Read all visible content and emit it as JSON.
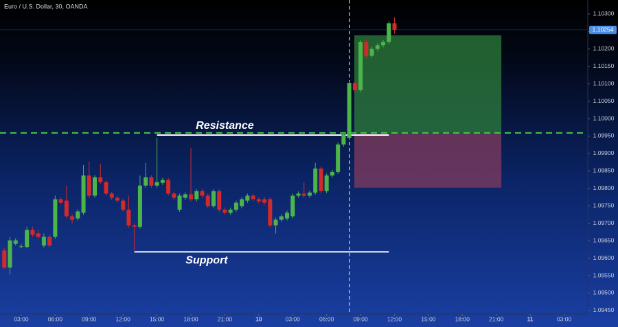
{
  "chart_data": {
    "type": "candlestick",
    "title": "Euro / U.S. Dollar, 30, OANDA",
    "up_color": "#4cb54a",
    "down_color": "#d12a2a",
    "xlim": [
      1.12,
      53.03
    ],
    "ylim": [
      1.0944,
      1.1034
    ],
    "xticks": [
      {
        "value": 3,
        "label": "03:00"
      },
      {
        "value": 6,
        "label": "06:00"
      },
      {
        "value": 9,
        "label": "09:00"
      },
      {
        "value": 12,
        "label": "12:00"
      },
      {
        "value": 15,
        "label": "15:00"
      },
      {
        "value": 18,
        "label": "18:00"
      },
      {
        "value": 21,
        "label": "21:00"
      },
      {
        "value": 24,
        "label": "10"
      },
      {
        "value": 27,
        "label": "03:00"
      },
      {
        "value": 30,
        "label": "06:00"
      },
      {
        "value": 33,
        "label": "09:00"
      },
      {
        "value": 36,
        "label": "12:00"
      },
      {
        "value": 39,
        "label": "15:00"
      },
      {
        "value": 42,
        "label": "18:00"
      },
      {
        "value": 45,
        "label": "21:00"
      },
      {
        "value": 48,
        "label": "11"
      },
      {
        "value": 51,
        "label": "03:00"
      }
    ],
    "yticks": [
      {
        "value": 1.103,
        "label": "1.10300"
      },
      {
        "value": 1.1025,
        "label": "1.10250"
      },
      {
        "value": 1.102,
        "label": "1.10200"
      },
      {
        "value": 1.1015,
        "label": "1.10150"
      },
      {
        "value": 1.101,
        "label": "1.10100"
      },
      {
        "value": 1.1005,
        "label": "1.10050"
      },
      {
        "value": 1.1,
        "label": "1.10000"
      },
      {
        "value": 1.0995,
        "label": "1.09950"
      },
      {
        "value": 1.099,
        "label": "1.09900"
      },
      {
        "value": 1.0985,
        "label": "1.09850"
      },
      {
        "value": 1.098,
        "label": "1.09800"
      },
      {
        "value": 1.0975,
        "label": "1.09750"
      },
      {
        "value": 1.097,
        "label": "1.09700"
      },
      {
        "value": 1.0965,
        "label": "1.09650"
      },
      {
        "value": 1.096,
        "label": "1.09600"
      },
      {
        "value": 1.0955,
        "label": "1.09550"
      },
      {
        "value": 1.095,
        "label": "1.09500"
      },
      {
        "value": 1.0945,
        "label": "1.09450"
      }
    ],
    "current_price": {
      "value": 1.10254,
      "label": "1.10254"
    },
    "x": [
      1.5,
      2,
      2.5,
      3,
      3.5,
      4,
      4.5,
      5,
      5.5,
      6,
      6.5,
      7,
      7.5,
      8,
      8.5,
      9,
      9.5,
      10,
      10.5,
      11,
      11.5,
      12,
      12.5,
      13,
      13.5,
      14,
      14.5,
      15,
      15.5,
      16,
      16.5,
      17,
      17.5,
      18,
      18.5,
      19,
      19.5,
      20,
      20.5,
      21,
      21.5,
      22,
      22.5,
      23,
      23.5,
      24,
      24.5,
      25,
      25.5,
      26,
      26.5,
      27,
      27.5,
      28,
      28.5,
      29,
      29.5,
      30,
      30.5,
      31,
      31.5,
      32,
      32.5,
      33,
      33.5,
      34,
      34.5,
      35,
      35.5,
      36
    ],
    "open": [
      1.09622,
      1.09573,
      1.09641,
      1.09632,
      1.09632,
      1.09681,
      1.09671,
      1.09636,
      1.09661,
      1.09661,
      1.09769,
      1.09765,
      1.0972,
      1.09714,
      1.0973,
      1.09837,
      1.09779,
      1.09832,
      1.09818,
      1.09785,
      1.09773,
      1.09765,
      1.09739,
      1.09694,
      1.0969,
      1.09808,
      1.09832,
      1.09808,
      1.09816,
      1.09824,
      1.09785,
      1.09739,
      1.09773,
      1.09783,
      1.09769,
      1.09792,
      1.09779,
      1.09749,
      1.09792,
      1.09739,
      1.0973,
      1.09739,
      1.09749,
      1.09765,
      1.09779,
      1.09769,
      1.09769,
      1.09769,
      1.09694,
      1.0971,
      1.09714,
      1.0972,
      1.09779,
      1.09785,
      1.09779,
      1.09788,
      1.09857,
      1.09792,
      1.09837,
      1.09847,
      1.09926,
      1.09945,
      1.10102,
      1.10082,
      1.1022,
      1.1018,
      1.102,
      1.1021,
      1.1022,
      1.10273
    ],
    "high": [
      1.09628,
      1.09661,
      1.09657,
      1.09641,
      1.0969,
      1.0969,
      1.09681,
      1.09671,
      1.09667,
      1.09779,
      1.09775,
      1.09808,
      1.09726,
      1.0974,
      1.09867,
      1.09877,
      1.09838,
      1.09871,
      1.09824,
      1.0979,
      1.09779,
      1.09771,
      1.09779,
      1.097,
      1.09837,
      1.09873,
      1.09838,
      1.09945,
      1.0983,
      1.0983,
      1.09791,
      1.09785,
      1.09789,
      1.09916,
      1.09798,
      1.09798,
      1.09785,
      1.09798,
      1.09798,
      1.09745,
      1.09745,
      1.09765,
      1.09775,
      1.09785,
      1.09785,
      1.09775,
      1.09775,
      1.09775,
      1.09716,
      1.09726,
      1.09736,
      1.09785,
      1.09791,
      1.09818,
      1.09794,
      1.09873,
      1.09863,
      1.09843,
      1.09853,
      1.09932,
      1.09961,
      1.10108,
      1.10108,
      1.10226,
      1.10226,
      1.10206,
      1.10216,
      1.10226,
      1.10279,
      1.1029
    ],
    "low": [
      1.09569,
      1.09553,
      1.09636,
      1.09628,
      1.09628,
      1.09661,
      1.09655,
      1.0963,
      1.09632,
      1.09655,
      1.09755,
      1.09714,
      1.097,
      1.09708,
      1.09724,
      1.09773,
      1.09773,
      1.09812,
      1.09779,
      1.09767,
      1.09759,
      1.09733,
      1.09688,
      1.09622,
      1.09684,
      1.09802,
      1.09802,
      1.09802,
      1.0981,
      1.09779,
      1.09767,
      1.09733,
      1.09767,
      1.09763,
      1.09763,
      1.09773,
      1.09743,
      1.09743,
      1.09733,
      1.09724,
      1.09724,
      1.09733,
      1.09743,
      1.09759,
      1.09763,
      1.09757,
      1.09753,
      1.09688,
      1.09671,
      1.09704,
      1.09708,
      1.09714,
      1.09773,
      1.09773,
      1.09773,
      1.09782,
      1.09786,
      1.09786,
      1.09831,
      1.09841,
      1.0992,
      1.09939,
      1.10076,
      1.10076,
      1.10174,
      1.10174,
      1.10194,
      1.10204,
      1.10214,
      1.10243
    ],
    "close": [
      1.09573,
      1.09651,
      1.09651,
      1.09634,
      1.09681,
      1.09667,
      1.09661,
      1.09661,
      1.09636,
      1.09769,
      1.09759,
      1.0972,
      1.0971,
      1.09734,
      1.09837,
      1.09779,
      1.09832,
      1.09818,
      1.09785,
      1.09773,
      1.09765,
      1.09739,
      1.09694,
      1.0969,
      1.09808,
      1.09832,
      1.09808,
      1.09818,
      1.09824,
      1.09785,
      1.09773,
      1.09779,
      1.09783,
      1.09769,
      1.09792,
      1.09779,
      1.09749,
      1.09792,
      1.09739,
      1.0973,
      1.09739,
      1.09759,
      1.09769,
      1.09779,
      1.09769,
      1.09763,
      1.09759,
      1.09694,
      1.0971,
      1.0972,
      1.0973,
      1.09779,
      1.09785,
      1.09779,
      1.09788,
      1.09857,
      1.09792,
      1.09837,
      1.09847,
      1.09926,
      1.09955,
      1.10102,
      1.10082,
      1.1022,
      1.1018,
      1.102,
      1.1021,
      1.1022,
      1.10273,
      1.10254
    ],
    "levels": [
      {
        "label": "Resistance",
        "price": 1.09953,
        "x": [
          15.0,
          35.5
        ],
        "color": "#ffffff"
      },
      {
        "label": "Support",
        "price": 1.09618,
        "x": [
          13.0,
          35.5
        ],
        "color": "#ffffff"
      }
    ],
    "position": {
      "x": [
        32.45,
        45.45
      ],
      "entry": 1.09959,
      "target": 1.10239,
      "stop": 1.09802,
      "profit_color": "#2e7d3c",
      "loss_color": "#7a3a5e",
      "entry_color": "#45c845"
    },
    "marker_x": 32,
    "marker_color": "#f2e341"
  }
}
